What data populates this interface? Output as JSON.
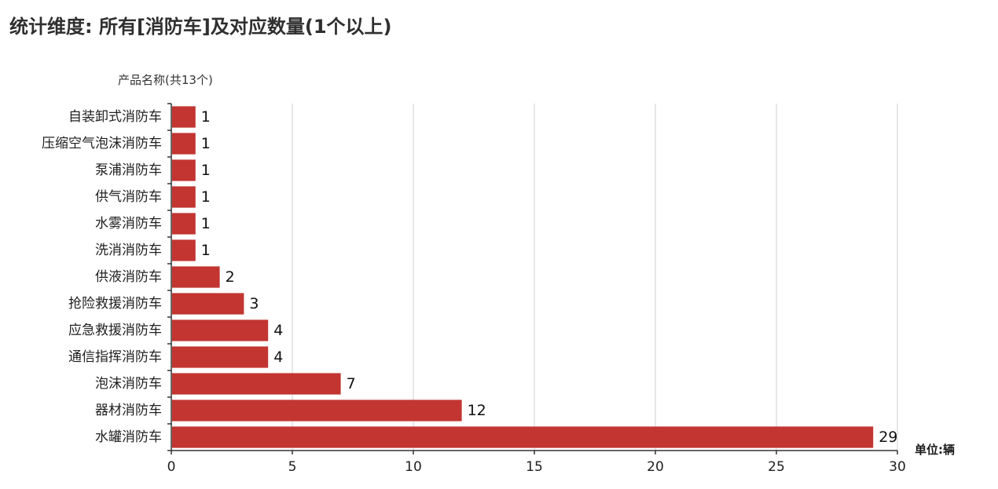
{
  "title": "统计维度: 所有[消防车]及对应数量(1个以上)",
  "colors": {
    "bar": "#c23531",
    "grid": "#cfcfcf",
    "axis": "#333333"
  },
  "chart_data": {
    "type": "bar",
    "orientation": "horizontal",
    "ylabel": "产品名称(共13个)",
    "xlabel": "单位:辆",
    "categories": [
      "自装卸式消防车",
      "压缩空气泡沫消防车",
      "泵浦消防车",
      "供气消防车",
      "水雾消防车",
      "洗消消防车",
      "供液消防车",
      "抢险救援消防车",
      "应急救援消防车",
      "通信指挥消防车",
      "泡沫消防车",
      "器材消防车",
      "水罐消防车"
    ],
    "values": [
      1,
      1,
      1,
      1,
      1,
      1,
      2,
      3,
      4,
      4,
      7,
      12,
      29
    ],
    "xlim": [
      0,
      30
    ],
    "xticks": [
      0,
      5,
      10,
      15,
      20,
      25,
      30
    ],
    "grid": true,
    "data_labels": true
  }
}
